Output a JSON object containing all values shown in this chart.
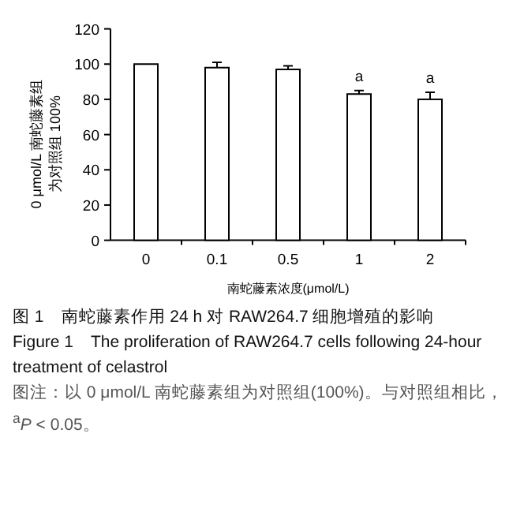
{
  "chart_data": {
    "type": "bar",
    "xlabel": "南蛇藤素浓度(μmol/L)",
    "ylabel": "0 μmol/L 南蛇藤素组为对照组 100%",
    "categories": [
      "0",
      "0.1",
      "0.5",
      "1",
      "2"
    ],
    "values": [
      100,
      98,
      97,
      83,
      80
    ],
    "errors": [
      null,
      3,
      2,
      2,
      4
    ],
    "value_labels": [
      null,
      null,
      null,
      "a",
      "a"
    ],
    "color": "#ffffff",
    "ylim": [
      0,
      120
    ],
    "yticks": [
      0,
      20,
      40,
      60,
      80,
      100,
      120
    ],
    "annotations": [
      "图 1　南蛇藤素作用 24 h 对 RAW264.7 细胞增殖的影响",
      "Figure 1　The proliferation of RAW264.7 cells following 24-hour treatment of celastrol",
      "图注：以 0 μmol/L 南蛇藤素组为对照组(100%)。与对照组相比，$^{a}$*P* < 0.05。"
    ]
  }
}
